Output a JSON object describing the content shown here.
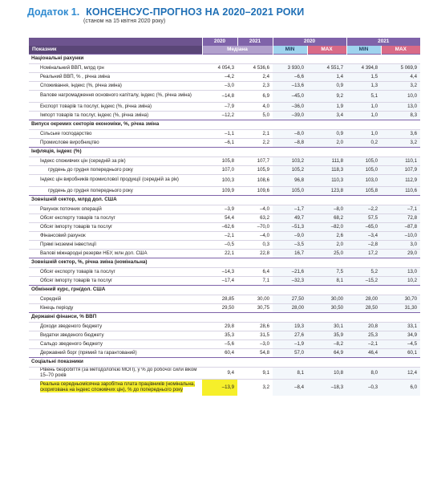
{
  "header": {
    "prefix": "Додаток 1.",
    "title": "КОНСЕНСУС-ПРОГНОЗ НА 2020–2021 РОКИ",
    "subtitle": "(станом на 15 квітня 2020 року)"
  },
  "table": {
    "col_indicator": "Показник",
    "years": {
      "y2020": "2020",
      "y2021": "2021"
    },
    "median_label": "Медіана",
    "min_label": "MIN",
    "max_label": "MAX",
    "sections": [
      {
        "title": "Національні рахунки",
        "rows": [
          {
            "name": "Номінальний ВВП, млрд грн",
            "v": [
              "4 054,3",
              "4 536,6",
              "3 930,0",
              "4 551,7",
              "4 394,8",
              "5 069,9"
            ]
          },
          {
            "name": "Реальний ВВП, % , річна зміна",
            "v": [
              "–4,2",
              "2,4",
              "–6,6",
              "1,4",
              "1,5",
              "4,4"
            ]
          },
          {
            "name": "Споживання, індекс (%, річна зміна)",
            "v": [
              "–3,0",
              "2,3",
              "–13,6",
              "0,9",
              "1,3",
              "3,2"
            ]
          },
          {
            "name": "Валове нагромадження основного капіталу, індекс (%, річна зміна)",
            "v": [
              "–14,8",
              "6,9",
              "–45,0",
              "9,2",
              "5,1",
              "10,0"
            ],
            "tall": true
          },
          {
            "name": "Експорт товарів та послуг, індекс (%, річна зміна)",
            "v": [
              "–7,9",
              "4,0",
              "–36,0",
              "1,9",
              "1,0",
              "13,0"
            ]
          },
          {
            "name": "Імпорт товарів та послуг, індекс (%, річна зміна)",
            "v": [
              "–12,2",
              "5,0",
              "–39,0",
              "3,4",
              "1,0",
              "8,3"
            ]
          }
        ]
      },
      {
        "title": "Випуск окремих секторів економіки, %, річна зміна",
        "rows": [
          {
            "name": "Сільське господарство",
            "v": [
              "–1,1",
              "2,1",
              "–8,0",
              "0,9",
              "1,0",
              "3,6"
            ]
          },
          {
            "name": "Промислове виробництво",
            "v": [
              "–6,1",
              "2,2",
              "–8,8",
              "2,0",
              "0,2",
              "3,2"
            ]
          }
        ]
      },
      {
        "title": "Інфляція, індекс (%)",
        "rows": [
          {
            "name": "Індекс споживчих цін (середній за рік)",
            "v": [
              "105,8",
              "107,7",
              "103,2",
              "111,8",
              "105,0",
              "110,1"
            ]
          },
          {
            "name": "грудень до грудня попереднього року",
            "v": [
              "107,0",
              "105,9",
              "105,2",
              "118,3",
              "105,0",
              "107,9"
            ],
            "indent": true
          },
          {
            "name": "Індекс цін виробників промислової продукції (середній за рік)",
            "v": [
              "100,3",
              "108,6",
              "96,8",
              "110,3",
              "103,0",
              "112,9"
            ],
            "tall": true
          },
          {
            "name": "грудень до грудня попереднього року",
            "v": [
              "109,9",
              "109,6",
              "105,0",
              "123,8",
              "105,8",
              "110,6"
            ],
            "indent": true
          }
        ]
      },
      {
        "title": "Зовнішній сектор, млрд дол. США",
        "rows": [
          {
            "name": "Рахунок поточних операцій",
            "v": [
              "–3,9",
              "–4,0",
              "–1,7",
              "–8,0",
              "–2,2",
              "–7,1"
            ]
          },
          {
            "name": "Обсяг експорту товарів та послуг",
            "v": [
              "54,4",
              "63,2",
              "49,7",
              "68,2",
              "57,5",
              "72,8"
            ]
          },
          {
            "name": "Обсяг імпорту товарів та послуг",
            "v": [
              "–62,6",
              "–70,0",
              "–51,3",
              "–82,0",
              "–65,0",
              "–87,8"
            ]
          },
          {
            "name": "Фінансовий рахунок",
            "v": [
              "–2,1",
              "–4,0",
              "–9,0",
              "2,6",
              "–3,4",
              "–10,0"
            ]
          },
          {
            "name": "Прямі іноземні інвестиції",
            "v": [
              "–0,5",
              "0,3",
              "–3,5",
              "2,0",
              "–2,8",
              "3,0"
            ]
          },
          {
            "name": "Валові міжнародні резерви НБУ, млн дол. США",
            "v": [
              "22,1",
              "22,8",
              "16,7",
              "25,0",
              "17,2",
              "29,0"
            ]
          }
        ]
      },
      {
        "title": "Зовнішній сектор, %, річна зміна (номінальна)",
        "rows": [
          {
            "name": "Обсяг експорту товарів та послуг",
            "v": [
              "–14,3",
              "6,4",
              "–21,6",
              "7,5",
              "5,2",
              "13,0"
            ]
          },
          {
            "name": "Обсяг імпорту товарів та послуг",
            "v": [
              "–17,4",
              "7,1",
              "–32,3",
              "8,1",
              "–15,2",
              "10,2"
            ]
          }
        ]
      },
      {
        "title": "Обмінний курс, грн/дол. США",
        "rows": [
          {
            "name": "Середній",
            "v": [
              "28,85",
              "30,00",
              "27,50",
              "30,00",
              "28,00",
              "30,70"
            ]
          },
          {
            "name": "Кінець періоду",
            "v": [
              "29,50",
              "30,75",
              "28,00",
              "30,50",
              "28,50",
              "31,30"
            ]
          }
        ]
      },
      {
        "title": "Державні фінанси, % ВВП",
        "rows": [
          {
            "name": "Доходи зведеного бюджету",
            "v": [
              "29,8",
              "28,6",
              "19,3",
              "30,1",
              "20,8",
              "33,1"
            ]
          },
          {
            "name": "Видатки зведеного бюджету",
            "v": [
              "35,3",
              "31,5",
              "27,6",
              "35,9",
              "25,3",
              "34,9"
            ]
          },
          {
            "name": "Сальдо зведеного бюджету",
            "v": [
              "–5,6",
              "–3,0",
              "–1,9",
              "–8,2",
              "–2,1",
              "–4,5"
            ]
          },
          {
            "name": "Державний борг (прямий та гарантований)",
            "v": [
              "60,4",
              "54,8",
              "57,0",
              "64,9",
              "46,4",
              "60,1"
            ]
          }
        ]
      },
      {
        "title": "Соціальні показники",
        "rows": [
          {
            "name": "Рівень безробіття (за методологією МОП), у % до робочої сили віком 15–70 років",
            "v": [
              "9,4",
              "9,1",
              "8,1",
              "10,8",
              "8,0",
              "12,4"
            ],
            "tall": true
          },
          {
            "name": "Реальна середньомісячна заробітна плата працівників (номінальна, скоригована на індекс споживчих цін), % до попереднього року",
            "v": [
              "–13,9",
              "3,2",
              "–8,4",
              "–18,3",
              "–0,3",
              "6,0"
            ],
            "xtall": true,
            "highlight": true
          }
        ]
      }
    ]
  },
  "colors": {
    "title_blue": "#1f6fb5",
    "header_purple": "#7f63a9",
    "min_blue": "#9fd3ee",
    "max_pink": "#d96a87",
    "highlight_yellow": "#f6ef2a"
  }
}
